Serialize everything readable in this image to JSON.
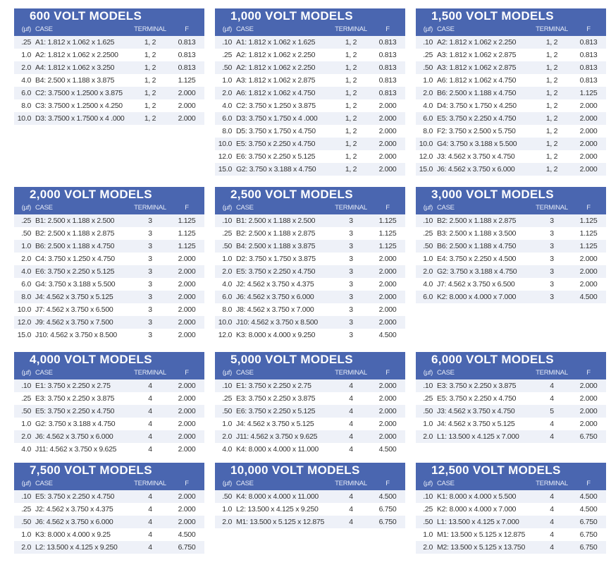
{
  "colors": {
    "header": "#4a66b0",
    "row_alt": "#eef1f8"
  },
  "columns": {
    "uf": "(µf)",
    "case": "CASE",
    "terminal": "TERMINAL",
    "f": "F"
  },
  "tables": [
    {
      "title": "600 VOLT MODELS",
      "rows": [
        [
          ".25",
          "A1: 1.812 x 1.062 x 1.625",
          "1, 2",
          "0.813"
        ],
        [
          "1.0",
          "A2: 1.812 x 1.062 x 2.2500",
          "1, 2",
          "0.813"
        ],
        [
          "2.0",
          "A4: 1.812 x 1.062 x 3.250",
          "1, 2",
          "0.813"
        ],
        [
          "4.0",
          "B4: 2.500 x 1.188 x 3.875",
          "1, 2",
          "1.125"
        ],
        [
          "6.0",
          "C2: 3.7500 x 1.2500 x 3.875",
          "1, 2",
          "2.000"
        ],
        [
          "8.0",
          "C3: 3.7500 x 1.2500 x 4.250",
          "1, 2",
          "2.000"
        ],
        [
          "10.0",
          "D3: 3.7500 x 1.7500 x 4 .000",
          "1, 2",
          "2.000"
        ]
      ]
    },
    {
      "title": "1,000 VOLT MODELS",
      "rows": [
        [
          ".10",
          "A1: 1.812 x 1.062 x 1.625",
          "1, 2",
          "0.813"
        ],
        [
          ".25",
          "A2: 1.812 x 1.062 x 2.250",
          "1, 2",
          "0.813"
        ],
        [
          ".50",
          "A2: 1.812 x 1.062 x 2.250",
          "1, 2",
          "0.813"
        ],
        [
          "1.0",
          "A3: 1.812 x 1.062 x 2.875",
          "1, 2",
          "0.813"
        ],
        [
          "2.0",
          "A6: 1.812 x 1.062 x 4.750",
          "1, 2",
          "0.813"
        ],
        [
          "4.0",
          "C2: 3.750 x 1.250 x 3.875",
          "1, 2",
          "2.000"
        ],
        [
          "6.0",
          "D3: 3.750 x 1.750 x 4 .000",
          "1, 2",
          "2.000"
        ],
        [
          "8.0",
          "D5: 3.750 x 1.750 x 4.750",
          "1, 2",
          "2.000"
        ],
        [
          "10.0",
          "E5: 3.750 x 2.250 x 4.750",
          "1, 2",
          "2.000"
        ],
        [
          "12.0",
          "E6: 3.750 x 2.250 x 5.125",
          "1, 2",
          "2.000"
        ],
        [
          "15.0",
          "G2: 3.750 x 3.188 x 4.750",
          "1, 2",
          "2.000"
        ]
      ]
    },
    {
      "title": "1,500 VOLT MODELS",
      "rows": [
        [
          ".10",
          "A2: 1.812 x 1.062 x 2.250",
          "1, 2",
          "0.813"
        ],
        [
          ".25",
          "A3: 1.812 x 1.062 x 2.875",
          "1, 2",
          "0.813"
        ],
        [
          ".50",
          "A3: 1.812 x 1.062 x 2.875",
          "1, 2",
          "0.813"
        ],
        [
          "1.0",
          "A6: 1.812 x 1.062 x 4.750",
          "1, 2",
          "0.813"
        ],
        [
          "2.0",
          "B6: 2.500 x 1.188 x 4.750",
          "1, 2",
          "1.125"
        ],
        [
          "4.0",
          "D4: 3.750 x 1.750 x 4.250",
          "1, 2",
          "2.000"
        ],
        [
          "6.0",
          "E5: 3.750 x 2.250 x 4.750",
          "1, 2",
          "2.000"
        ],
        [
          "8.0",
          "F2: 3.750 x 2.500 x 5.750",
          "1, 2",
          "2.000"
        ],
        [
          "10.0",
          "G4: 3.750 x 3.188 x 5.500",
          "1, 2",
          "2.000"
        ],
        [
          "12.0",
          "J3: 4.562 x 3.750 x 4.750",
          "1, 2",
          "2.000"
        ],
        [
          "15.0",
          "J6: 4.562 x 3.750 x 6.000",
          "1, 2",
          "2.000"
        ]
      ]
    },
    {
      "title": "2,000 VOLT MODELS",
      "rows": [
        [
          ".25",
          "B1: 2.500 x 1.188 x 2.500",
          "3",
          "1.125"
        ],
        [
          ".50",
          "B2: 2.500 x 1.188 x 2.875",
          "3",
          "1.125"
        ],
        [
          "1.0",
          "B6: 2.500 x 1.188 x 4.750",
          "3",
          "1.125"
        ],
        [
          "2.0",
          "C4: 3.750 x 1.250 x 4.750",
          "3",
          "2.000"
        ],
        [
          "4.0",
          "E6: 3.750 x 2.250 x 5.125",
          "3",
          "2.000"
        ],
        [
          "6.0",
          "G4: 3.750 x 3.188 x 5.500",
          "3",
          "2.000"
        ],
        [
          "8.0",
          "J4: 4.562 x 3.750 x 5.125",
          "3",
          "2.000"
        ],
        [
          "10.0",
          "J7: 4.562 x 3.750 x 6.500",
          "3",
          "2.000"
        ],
        [
          "12.0",
          "J9: 4.562 x 3.750 x 7.500",
          "3",
          "2.000"
        ],
        [
          "15.0",
          "J10: 4.562 x 3.750 x 8.500",
          "3",
          "2.000"
        ]
      ]
    },
    {
      "title": "2,500 VOLT MODELS",
      "rows": [
        [
          ".10",
          "B1: 2.500 x 1.188 x 2.500",
          "3",
          "1.125"
        ],
        [
          ".25",
          "B2: 2.500 x 1.188 x 2.875",
          "3",
          "1.125"
        ],
        [
          ".50",
          "B4: 2.500 x 1.188 x 3.875",
          "3",
          "1.125"
        ],
        [
          "1.0",
          "D2: 3.750 x 1.750 x 3.875",
          "3",
          "2.000"
        ],
        [
          "2.0",
          "E5: 3.750 x 2.250 x 4.750",
          "3",
          "2.000"
        ],
        [
          "4.0",
          "J2: 4.562 x 3.750 x 4.375",
          "3",
          "2.000"
        ],
        [
          "6.0",
          "J6: 4.562 x 3.750 x 6.000",
          "3",
          "2.000"
        ],
        [
          "8.0",
          "J8: 4.562 x 3.750 x 7.000",
          "3",
          "2.000"
        ],
        [
          "10.0",
          "J10: 4.562 x 3.750 x 8.500",
          "3",
          "2.000"
        ],
        [
          "12.0",
          "K3: 8.000 x 4.000 x 9.250",
          "3",
          "4.500"
        ]
      ]
    },
    {
      "title": "3,000 VOLT MODELS",
      "rows": [
        [
          ".10",
          "B2: 2.500 x 1.188 x 2.875",
          "3",
          "1.125"
        ],
        [
          ".25",
          "B3: 2.500 x 1.188 x 3.500",
          "3",
          "1.125"
        ],
        [
          ".50",
          "B6: 2.500 x 1.188 x 4.750",
          "3",
          "1.125"
        ],
        [
          "1.0",
          "E4: 3.750 x 2.250 x 4.500",
          "3",
          "2.000"
        ],
        [
          "2.0",
          "G2: 3.750 x 3.188 x 4.750",
          "3",
          "2.000"
        ],
        [
          "4.0",
          "J7: 4.562 x 3.750 x 6.500",
          "3",
          "2.000"
        ],
        [
          "6.0",
          "K2: 8.000 x 4.000 x 7.000",
          "3",
          "4.500"
        ]
      ]
    },
    {
      "title": "4,000 VOLT MODELS",
      "rows": [
        [
          ".10",
          "E1: 3.750 x 2.250 x 2.75",
          "4",
          "2.000"
        ],
        [
          ".25",
          "E3: 3.750 x 2.250 x 3.875",
          "4",
          "2.000"
        ],
        [
          ".50",
          "E5: 3.750 x 2.250 x 4.750",
          "4",
          "2.000"
        ],
        [
          "1.0",
          "G2: 3.750 x 3.188 x 4.750",
          "4",
          "2.000"
        ],
        [
          "2.0",
          "J6: 4.562 x 3.750 x 6.000",
          "4",
          "2.000"
        ],
        [
          "4.0",
          "J11: 4.562 x 3.750 x 9.625",
          "4",
          "2.000"
        ]
      ]
    },
    {
      "title": "5,000 VOLT MODELS",
      "rows": [
        [
          ".10",
          "E1: 3.750 x 2.250 x 2.75",
          "4",
          "2.000"
        ],
        [
          ".25",
          "E3: 3.750 x 2.250 x 3.875",
          "4",
          "2.000"
        ],
        [
          ".50",
          "E6: 3.750 x 2.250 x 5.125",
          "4",
          "2.000"
        ],
        [
          "1.0",
          "J4: 4.562 x 3.750 x 5.125",
          "4",
          "2.000"
        ],
        [
          "2.0",
          "J11: 4.562 x 3.750 x 9.625",
          "4",
          "2.000"
        ],
        [
          "4.0",
          "K4: 8.000 x 4.000 x 11.000",
          "4",
          "4.500"
        ]
      ]
    },
    {
      "title": "6,000 VOLT MODELS",
      "rows": [
        [
          ".10",
          "E3: 3.750 x 2.250 x 3.875",
          "4",
          "2.000"
        ],
        [
          ".25",
          "E5: 3.750 x 2.250 x 4.750",
          "4",
          "2.000"
        ],
        [
          ".50",
          "J3: 4.562 x 3.750 x 4.750",
          "5",
          "2.000"
        ],
        [
          "1.0",
          "J4: 4.562 x 3.750 x 5.125",
          "4",
          "2.000"
        ],
        [
          "2.0",
          "L1: 13.500 x 4.125 x 7.000",
          "4",
          "6.750"
        ]
      ]
    },
    {
      "title": "7,500 VOLT MODELS",
      "rows": [
        [
          ".10",
          "E5: 3.750 x 2.250 x 4.750",
          "4",
          "2.000"
        ],
        [
          ".25",
          "J2: 4.562 x 3.750 x 4.375",
          "4",
          "2.000"
        ],
        [
          ".50",
          "J6: 4.562 x 3.750 x 6.000",
          "4",
          "2.000"
        ],
        [
          "1.0",
          "K3: 8.000 x 4.000 x 9.25",
          "4",
          "4.500"
        ],
        [
          "2.0",
          "L2: 13.500 x 4.125 x 9.250",
          "4",
          "6.750"
        ]
      ]
    },
    {
      "title": "10,000 VOLT MODELS",
      "rows": [
        [
          ".50",
          "K4: 8.000 x 4.000 x 11.000",
          "4",
          "4.500"
        ],
        [
          "1.0",
          "L2: 13.500 x 4.125 x 9.250",
          "4",
          "6.750"
        ],
        [
          "2.0",
          "M1: 13.500 x 5.125 x 12.875",
          "4",
          "6.750"
        ]
      ]
    },
    {
      "title": "12,500 VOLT MODELS",
      "rows": [
        [
          ".10",
          "K1: 8.000 x 4.000 x 5.500",
          "4",
          "4.500"
        ],
        [
          ".25",
          "K2: 8.000 x 4.000 x 7.000",
          "4",
          "4.500"
        ],
        [
          ".50",
          "L1: 13.500 x 4.125 x 7.000",
          "4",
          "6.750"
        ],
        [
          "1.0",
          "M1: 13.500 x 5.125 x 12.875",
          "4",
          "6.750"
        ],
        [
          "2.0",
          "M2: 13.500 x 5.125 x 13.750",
          "4",
          "6.750"
        ]
      ]
    }
  ]
}
